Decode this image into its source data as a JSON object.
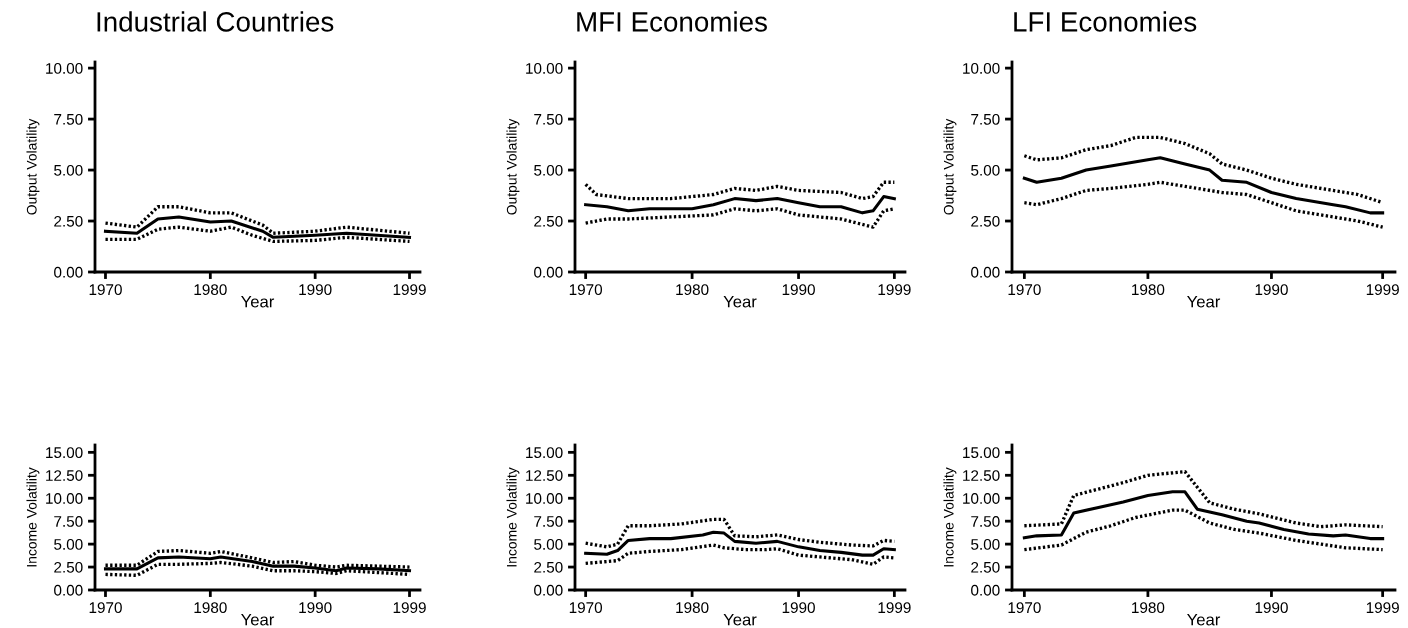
{
  "chart_data": [
    {
      "type": "line",
      "title": "Industrial Countries",
      "xlabel": "Year",
      "ylabel": "Output Volatility",
      "xlim": [
        1969,
        2000
      ],
      "xticks": [
        1970,
        1980,
        1990,
        1999
      ],
      "ylim": [
        0,
        10.3
      ],
      "yticks": [
        {
          "value": 0,
          "label": "0.00"
        },
        {
          "value": 2.5,
          "label": "2.50"
        },
        {
          "value": 5,
          "label": "5.00"
        },
        {
          "value": 7.5,
          "label": "7.50"
        },
        {
          "value": 10,
          "label": "10.00"
        }
      ],
      "series": [
        {
          "color": "#000000",
          "line_style": "solid",
          "x": [
            1970,
            1973,
            1975,
            1977,
            1980,
            1982,
            1985,
            1986,
            1990,
            1993,
            1999
          ],
          "values": [
            2.0,
            1.9,
            2.6,
            2.7,
            2.45,
            2.5,
            2.0,
            1.7,
            1.8,
            1.9,
            1.7
          ]
        },
        {
          "color": "#000000",
          "line_style": "dotted",
          "x": [
            1970,
            1973,
            1975,
            1977,
            1980,
            1982,
            1985,
            1986,
            1990,
            1993,
            1999
          ],
          "values": [
            2.4,
            2.2,
            3.2,
            3.2,
            2.9,
            2.9,
            2.3,
            1.9,
            2.0,
            2.2,
            1.9
          ]
        },
        {
          "color": "#000000",
          "line_style": "dotted",
          "x": [
            1970,
            1973,
            1975,
            1977,
            1980,
            1982,
            1984,
            1986,
            1990,
            1993,
            1999
          ],
          "values": [
            1.6,
            1.6,
            2.1,
            2.2,
            2.0,
            2.2,
            1.8,
            1.5,
            1.55,
            1.7,
            1.5
          ]
        }
      ]
    },
    {
      "type": "line",
      "title": "MFI Economies",
      "xlabel": "Year",
      "ylabel": "Output Volatility",
      "xlim": [
        1969,
        2000
      ],
      "xticks": [
        1970,
        1980,
        1990,
        1999
      ],
      "ylim": [
        0,
        10.3
      ],
      "yticks": [
        {
          "value": 0,
          "label": "0.00"
        },
        {
          "value": 2.5,
          "label": "2.50"
        },
        {
          "value": 5,
          "label": "5.00"
        },
        {
          "value": 7.5,
          "label": "7.50"
        },
        {
          "value": 10,
          "label": "10.00"
        }
      ],
      "series": [
        {
          "color": "#000000",
          "line_style": "solid",
          "x": [
            1970,
            1972,
            1974,
            1976,
            1980,
            1982,
            1984,
            1986,
            1988,
            1990,
            1992,
            1994,
            1996,
            1997,
            1998,
            1999
          ],
          "values": [
            3.3,
            3.2,
            3.0,
            3.1,
            3.1,
            3.3,
            3.6,
            3.5,
            3.6,
            3.4,
            3.2,
            3.2,
            2.9,
            3.0,
            3.7,
            3.6
          ]
        },
        {
          "color": "#000000",
          "line_style": "dotted",
          "x": [
            1970,
            1971,
            1974,
            1978,
            1982,
            1984,
            1986,
            1988,
            1990,
            1994,
            1996,
            1997,
            1998,
            1999
          ],
          "values": [
            4.3,
            3.8,
            3.6,
            3.6,
            3.8,
            4.1,
            4.0,
            4.2,
            4.0,
            3.9,
            3.6,
            3.7,
            4.4,
            4.4
          ]
        },
        {
          "color": "#000000",
          "line_style": "dotted",
          "x": [
            1970,
            1972,
            1974,
            1978,
            1982,
            1984,
            1986,
            1988,
            1990,
            1994,
            1997,
            1998,
            1999
          ],
          "values": [
            2.4,
            2.6,
            2.6,
            2.7,
            2.8,
            3.1,
            3.0,
            3.1,
            2.8,
            2.6,
            2.2,
            3.0,
            3.1
          ]
        }
      ]
    },
    {
      "type": "line",
      "title": "LFI Economies",
      "xlabel": "Year",
      "ylabel": "Output Volatility",
      "xlim": [
        1969,
        2000
      ],
      "xticks": [
        1970,
        1980,
        1990,
        1999
      ],
      "ylim": [
        0,
        10.3
      ],
      "yticks": [
        {
          "value": 0,
          "label": "0.00"
        },
        {
          "value": 2.5,
          "label": "2.50"
        },
        {
          "value": 5,
          "label": "5.00"
        },
        {
          "value": 7.5,
          "label": "7.50"
        },
        {
          "value": 10,
          "label": "10.00"
        }
      ],
      "series": [
        {
          "color": "#000000",
          "line_style": "solid",
          "x": [
            1970,
            1971,
            1973,
            1975,
            1977,
            1980,
            1981,
            1983,
            1985,
            1986,
            1988,
            1990,
            1992,
            1995,
            1996,
            1998,
            1999
          ],
          "values": [
            4.6,
            4.4,
            4.6,
            5.0,
            5.2,
            5.5,
            5.6,
            5.3,
            5.0,
            4.5,
            4.4,
            3.9,
            3.6,
            3.3,
            3.2,
            2.9,
            2.9
          ]
        },
        {
          "color": "#000000",
          "line_style": "dotted",
          "x": [
            1970,
            1971,
            1973,
            1975,
            1977,
            1979,
            1981,
            1983,
            1985,
            1986,
            1988,
            1990,
            1992,
            1995,
            1997,
            1999
          ],
          "values": [
            5.7,
            5.5,
            5.6,
            6.0,
            6.2,
            6.6,
            6.6,
            6.3,
            5.8,
            5.3,
            5.0,
            4.6,
            4.3,
            4.0,
            3.8,
            3.4
          ]
        },
        {
          "color": "#000000",
          "line_style": "dotted",
          "x": [
            1970,
            1971,
            1973,
            1975,
            1977,
            1980,
            1981,
            1983,
            1986,
            1988,
            1990,
            1992,
            1995,
            1997,
            1999
          ],
          "values": [
            3.4,
            3.3,
            3.6,
            4.0,
            4.1,
            4.3,
            4.4,
            4.2,
            3.9,
            3.8,
            3.4,
            3.0,
            2.7,
            2.5,
            2.2
          ]
        }
      ]
    },
    {
      "type": "line",
      "xlabel": "Year",
      "ylabel": "Income Volatility",
      "xlim": [
        1969,
        2000
      ],
      "xticks": [
        1970,
        1980,
        1990,
        1999
      ],
      "ylim": [
        0,
        15.8
      ],
      "yticks": [
        {
          "value": 0,
          "label": "0.00"
        },
        {
          "value": 2.5,
          "label": "2.50"
        },
        {
          "value": 5,
          "label": "5.00"
        },
        {
          "value": 7.5,
          "label": "7.50"
        },
        {
          "value": 10,
          "label": "10.00"
        },
        {
          "value": 12.5,
          "label": "12.50"
        },
        {
          "value": 15,
          "label": "15.00"
        }
      ],
      "series": [
        {
          "color": "#000000",
          "line_style": "solid",
          "x": [
            1970,
            1973,
            1975,
            1977,
            1980,
            1981,
            1984,
            1986,
            1988,
            1990,
            1992,
            1993,
            1996,
            1999
          ],
          "values": [
            2.3,
            2.3,
            3.5,
            3.6,
            3.4,
            3.6,
            3.1,
            2.6,
            2.6,
            2.4,
            2.1,
            2.4,
            2.3,
            2.1
          ]
        },
        {
          "color": "#000000",
          "line_style": "dotted",
          "x": [
            1970,
            1973,
            1975,
            1977,
            1980,
            1981,
            1984,
            1986,
            1988,
            1990,
            1992,
            1993,
            1996,
            1999
          ],
          "values": [
            2.7,
            2.7,
            4.2,
            4.3,
            4.0,
            4.2,
            3.5,
            3.0,
            3.1,
            2.7,
            2.5,
            2.7,
            2.6,
            2.5
          ]
        },
        {
          "color": "#000000",
          "line_style": "dotted",
          "x": [
            1970,
            1973,
            1975,
            1977,
            1980,
            1981,
            1984,
            1986,
            1988,
            1990,
            1992,
            1993,
            1996,
            1999
          ],
          "values": [
            1.7,
            1.6,
            2.8,
            2.8,
            2.9,
            3.0,
            2.6,
            2.1,
            2.1,
            2.0,
            1.8,
            2.1,
            1.9,
            1.7
          ]
        }
      ]
    },
    {
      "type": "line",
      "xlabel": "Year",
      "ylabel": "Income Volatility",
      "xlim": [
        1969,
        2000
      ],
      "xticks": [
        1970,
        1980,
        1990,
        1999
      ],
      "ylim": [
        0,
        15.8
      ],
      "yticks": [
        {
          "value": 0,
          "label": "0.00"
        },
        {
          "value": 2.5,
          "label": "2.50"
        },
        {
          "value": 5,
          "label": "5.00"
        },
        {
          "value": 7.5,
          "label": "7.50"
        },
        {
          "value": 10,
          "label": "10.00"
        },
        {
          "value": 12.5,
          "label": "12.50"
        },
        {
          "value": 15,
          "label": "15.00"
        }
      ],
      "series": [
        {
          "color": "#000000",
          "line_style": "solid",
          "x": [
            1970,
            1972,
            1973,
            1974,
            1976,
            1978,
            1981,
            1982,
            1983,
            1984,
            1986,
            1988,
            1990,
            1992,
            1994,
            1996,
            1997,
            1998,
            1999
          ],
          "values": [
            4.0,
            3.9,
            4.3,
            5.4,
            5.6,
            5.6,
            6.0,
            6.3,
            6.2,
            5.3,
            5.1,
            5.3,
            4.7,
            4.3,
            4.1,
            3.8,
            3.8,
            4.5,
            4.4
          ]
        },
        {
          "color": "#000000",
          "line_style": "dotted",
          "x": [
            1970,
            1972,
            1973,
            1974,
            1976,
            1979,
            1982,
            1983,
            1984,
            1986,
            1988,
            1990,
            1992,
            1995,
            1997,
            1998,
            1999
          ],
          "values": [
            5.1,
            4.7,
            5.0,
            7.0,
            7.0,
            7.2,
            7.7,
            7.7,
            5.9,
            5.8,
            6.0,
            5.5,
            5.2,
            4.9,
            4.8,
            5.4,
            5.3
          ]
        },
        {
          "color": "#000000",
          "line_style": "dotted",
          "x": [
            1970,
            1972,
            1973,
            1974,
            1976,
            1979,
            1982,
            1983,
            1985,
            1987,
            1988,
            1990,
            1992,
            1995,
            1997,
            1998,
            1999
          ],
          "values": [
            2.9,
            3.1,
            3.2,
            4.0,
            4.2,
            4.4,
            4.9,
            4.6,
            4.4,
            4.4,
            4.5,
            3.8,
            3.6,
            3.3,
            2.8,
            3.6,
            3.5
          ]
        }
      ]
    },
    {
      "type": "line",
      "xlabel": "Year",
      "ylabel": "Income Volatility",
      "xlim": [
        1969,
        2000
      ],
      "xticks": [
        1970,
        1980,
        1990,
        1999
      ],
      "ylim": [
        0,
        15.8
      ],
      "yticks": [
        {
          "value": 0,
          "label": "0.00"
        },
        {
          "value": 2.5,
          "label": "2.50"
        },
        {
          "value": 5,
          "label": "5.00"
        },
        {
          "value": 7.5,
          "label": "7.50"
        },
        {
          "value": 10,
          "label": "10.00"
        },
        {
          "value": 12.5,
          "label": "12.50"
        },
        {
          "value": 15,
          "label": "15.00"
        }
      ],
      "series": [
        {
          "color": "#000000",
          "line_style": "solid",
          "x": [
            1970,
            1971,
            1973,
            1974,
            1976,
            1978,
            1980,
            1982,
            1983,
            1984,
            1986,
            1988,
            1989,
            1991,
            1993,
            1995,
            1996,
            1998,
            1999
          ],
          "values": [
            5.7,
            5.9,
            6.0,
            8.4,
            9.0,
            9.6,
            10.3,
            10.7,
            10.7,
            8.8,
            8.2,
            7.5,
            7.3,
            6.6,
            6.1,
            5.9,
            6.0,
            5.6,
            5.6
          ]
        },
        {
          "color": "#000000",
          "line_style": "dotted",
          "x": [
            1970,
            1973,
            1974,
            1976,
            1978,
            1980,
            1983,
            1985,
            1987,
            1989,
            1992,
            1994,
            1996,
            1999
          ],
          "values": [
            7.0,
            7.2,
            10.3,
            11.0,
            11.7,
            12.5,
            12.9,
            9.5,
            8.8,
            8.3,
            7.3,
            6.9,
            7.1,
            6.9
          ]
        },
        {
          "color": "#000000",
          "line_style": "dotted",
          "x": [
            1970,
            1973,
            1975,
            1977,
            1979,
            1982,
            1983,
            1985,
            1987,
            1989,
            1992,
            1994,
            1996,
            1999
          ],
          "values": [
            4.4,
            4.9,
            6.3,
            7.0,
            7.9,
            8.7,
            8.7,
            7.3,
            6.6,
            6.2,
            5.4,
            5.0,
            4.6,
            4.4
          ]
        }
      ]
    }
  ]
}
